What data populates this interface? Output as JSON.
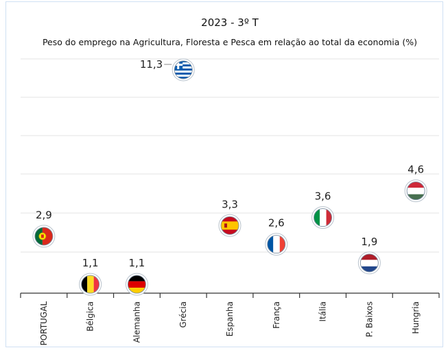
{
  "chart_data": {
    "type": "scatter",
    "title": "2023 - 3º T",
    "subtitle": "Peso do emprego na Agricultura, Floresta e Pesca em relação ao total da economia (%)",
    "categories": [
      "PORTUGAL",
      "Bélgica",
      "Alemanha",
      "Grécia",
      "Espanha",
      "França",
      "Itália",
      "P. Baixos",
      "Hungria"
    ],
    "values": [
      2.9,
      1.1,
      1.1,
      11.3,
      3.3,
      2.6,
      3.6,
      1.9,
      4.6
    ],
    "value_labels": [
      "2,9",
      "1,1",
      "1,1",
      "11,3",
      "3,3",
      "2,6",
      "3,6",
      "1,9",
      "4,6"
    ],
    "markers": [
      "flag-portugal-icon",
      "flag-belgium-icon",
      "flag-germany-icon",
      "flag-greece-icon",
      "flag-spain-icon",
      "flag-france-icon",
      "flag-italy-icon",
      "flag-netherlands-icon",
      "flag-hungary-icon"
    ],
    "grid": true,
    "legend": "none"
  }
}
